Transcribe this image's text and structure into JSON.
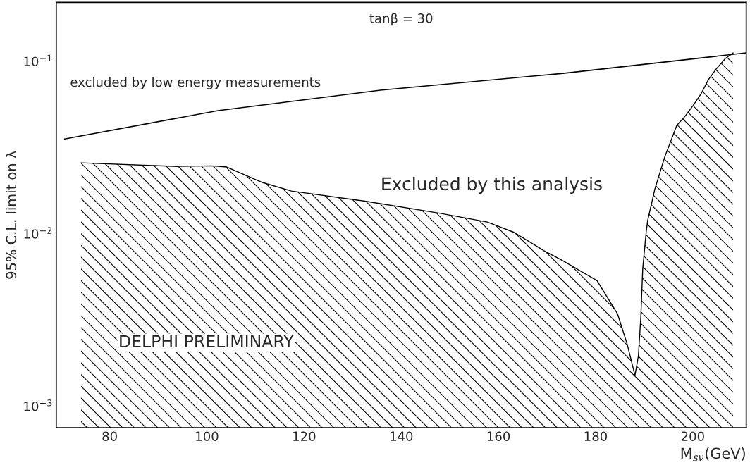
{
  "chart_data": {
    "type": "line",
    "xlabel": "M$_{sν}$(GeV)",
    "ylabel": "95% C.L. limit on λ",
    "series": [
      {
        "color": "#000000",
        "x": [
          70.7,
          102.3,
          135.7,
          173.3,
          211
        ],
        "values": [
          0.0355,
          0.0518,
          0.068,
          0.0852,
          0.112
        ]
      },
      {
        "type": "area",
        "color": "#000000",
        "x": [
          74.1,
          93.9,
          100.9,
          104.1,
          111.3,
          117.4,
          132.3,
          147.7,
          157.7,
          163.2,
          169.3,
          173.2,
          180.3,
          184.5,
          186.5,
          188.1,
          188.8,
          189.3,
          189.7,
          190.4,
          190.7,
          192.2,
          194.2,
          196.7,
          198.4,
          200.1,
          201.7,
          203.2,
          204.9,
          206.7,
          208.3
        ],
        "values": [
          0.0258,
          0.0246,
          0.0248,
          0.0244,
          0.0199,
          0.0177,
          0.0155,
          0.0132,
          0.0117,
          0.0102,
          0.008,
          0.007,
          0.00535,
          0.00344,
          0.00229,
          0.00151,
          0.00195,
          0.00327,
          0.0063,
          0.0102,
          0.0119,
          0.0182,
          0.0278,
          0.0425,
          0.048,
          0.0557,
          0.0648,
          0.0783,
          0.091,
          0.104,
          0.112
        ]
      }
    ],
    "annotations": [
      "tanβ = 30",
      "excluded by low energy measurements",
      "Excluded by this analysis",
      "DELPHI PRELIMINARY"
    ],
    "log": "y",
    "xlim": [
      69,
      211
    ],
    "ylim": [
      0.00075,
      0.22
    ],
    "xticks": [
      80,
      100,
      120,
      140,
      160,
      180,
      200
    ],
    "yticks": [
      {
        "value": 0.001,
        "label": "10$^{−3}$"
      },
      {
        "value": 0.01,
        "label": "10$^{−2}$"
      },
      {
        "value": 0.1,
        "label": "10$^{−1}$"
      }
    ],
    "grid": false,
    "legend": false
  }
}
